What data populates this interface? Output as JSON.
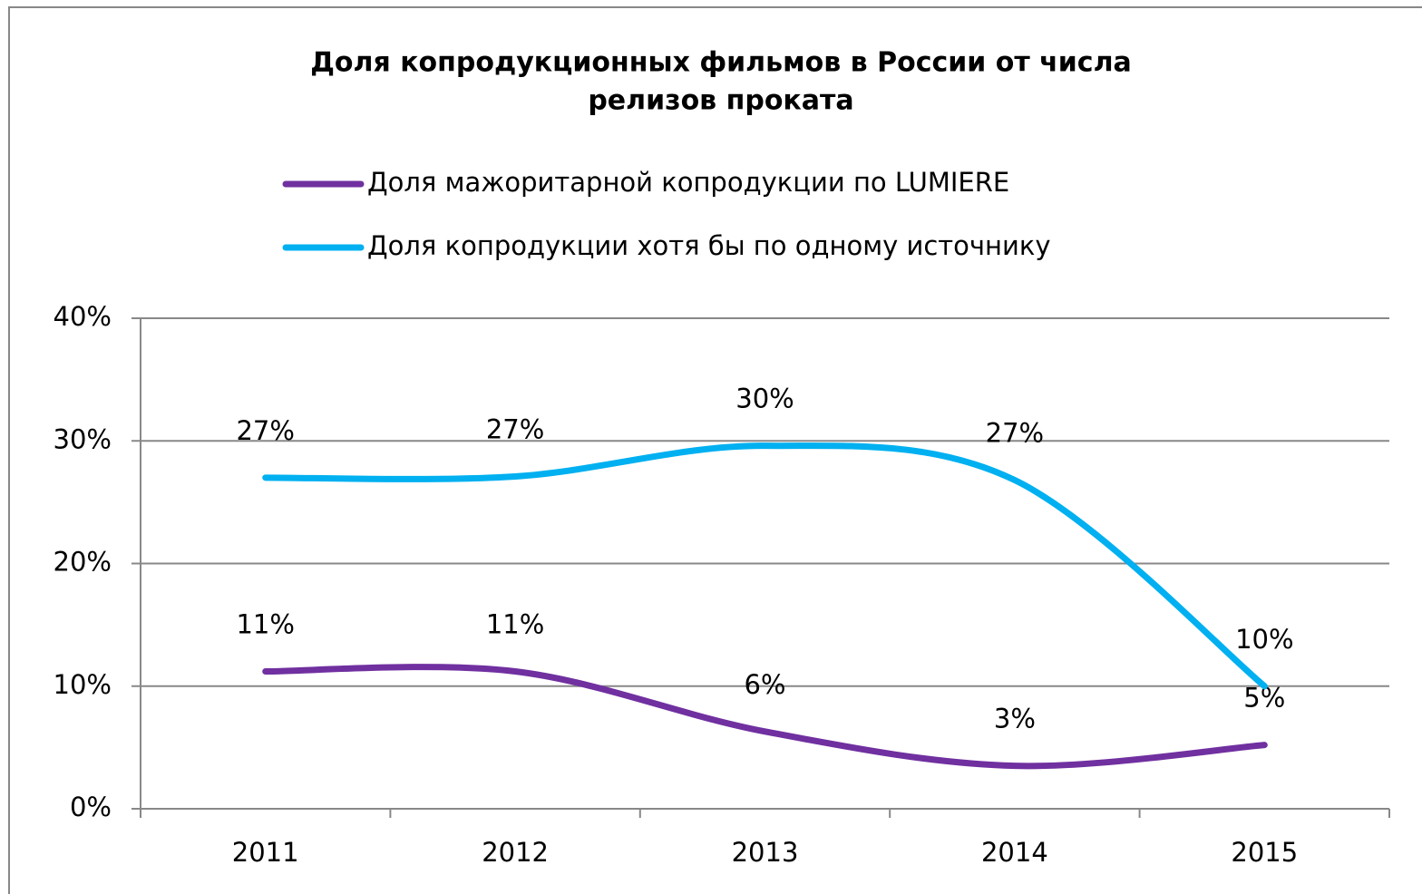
{
  "chart_data": {
    "type": "line",
    "title": [
      "Доля копродукционных фильмов в России от числа",
      "релизов проката"
    ],
    "categories": [
      "2011",
      "2012",
      "2013",
      "2014",
      "2015"
    ],
    "series": [
      {
        "name": "Доля мажоритарной копродукции по LUMIERE",
        "color": "#7030a0",
        "values": [
          11.2,
          11.2,
          6.3,
          3.5,
          5.2
        ],
        "value_labels": [
          "11%",
          "11%",
          "6%",
          "3%",
          "5%"
        ]
      },
      {
        "name": "Доля копродукции хотя бы по одному источнику",
        "color": "#00b0f0",
        "values": [
          27.0,
          27.1,
          29.6,
          26.8,
          10.0
        ],
        "value_labels": [
          "27%",
          "27%",
          "30%",
          "27%",
          "10%"
        ]
      }
    ],
    "ylim": [
      0,
      40
    ],
    "yticks": [
      {
        "value": 0,
        "label": "0%"
      },
      {
        "value": 10,
        "label": "10%"
      },
      {
        "value": 20,
        "label": "20%"
      },
      {
        "value": 30,
        "label": "30%"
      },
      {
        "value": 40,
        "label": "40%"
      }
    ],
    "grid": true,
    "legend": "top",
    "smooth": true
  }
}
